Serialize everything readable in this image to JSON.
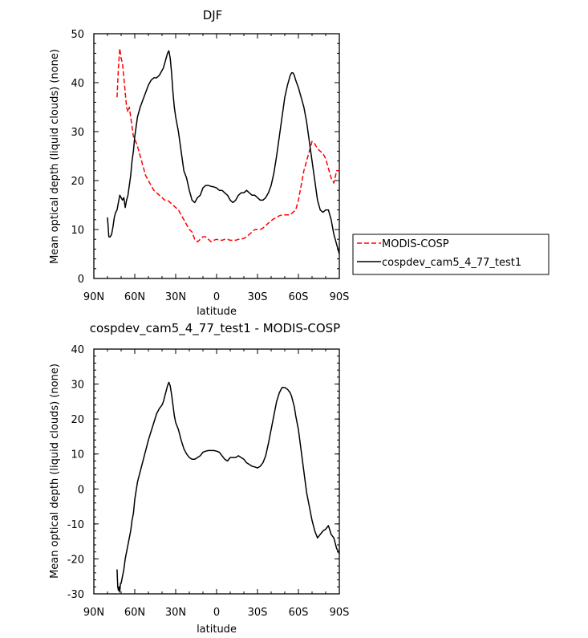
{
  "chart_data": [
    {
      "type": "line",
      "title": "DJF",
      "xlabel": "latitude",
      "ylabel": "Mean optical depth (liquid clouds) (none)",
      "xlim": [
        90,
        -90
      ],
      "ylim": [
        0,
        50
      ],
      "x_ticks": [
        {
          "value": 90,
          "label": "90N"
        },
        {
          "value": 60,
          "label": "60N"
        },
        {
          "value": 30,
          "label": "30N"
        },
        {
          "value": 0,
          "label": "0"
        },
        {
          "value": -30,
          "label": "30S"
        },
        {
          "value": -60,
          "label": "60S"
        },
        {
          "value": -90,
          "label": "90S"
        }
      ],
      "y_ticks": [
        0,
        10,
        20,
        30,
        40,
        50
      ],
      "legend_position": "right",
      "series": [
        {
          "name": "MODIS-COSP",
          "color": "#ff0000",
          "dash": "dashed",
          "x": [
            73,
            72,
            71,
            70,
            69,
            68,
            67,
            66,
            65,
            64,
            63,
            62,
            61,
            60,
            58,
            56,
            54,
            52,
            50,
            48,
            46,
            44,
            42,
            40,
            38,
            36,
            34,
            32,
            30,
            28,
            26,
            24,
            22,
            20,
            18,
            16,
            14,
            12,
            10,
            8,
            6,
            4,
            2,
            0,
            -2,
            -4,
            -6,
            -8,
            -10,
            -12,
            -14,
            -16,
            -18,
            -20,
            -22,
            -24,
            -26,
            -28,
            -30,
            -32,
            -34,
            -36,
            -38,
            -40,
            -42,
            -44,
            -46,
            -48,
            -50,
            -52,
            -54,
            -56,
            -58,
            -60,
            -62,
            -64,
            -66,
            -68,
            -70,
            -72,
            -74,
            -76,
            -78,
            -80,
            -82,
            -84,
            -86,
            -88,
            -90
          ],
          "y": [
            37,
            43,
            47,
            45,
            44,
            41,
            38,
            35,
            34,
            35,
            33,
            31,
            29,
            28.5,
            27,
            25,
            23,
            21,
            20,
            19,
            18,
            17.5,
            17,
            16.5,
            16,
            16,
            15.5,
            15,
            14.5,
            14,
            13,
            12,
            11,
            10,
            9.5,
            8,
            7.5,
            8,
            8.5,
            8.5,
            8,
            7.5,
            7.8,
            8,
            7.8,
            7.8,
            8,
            8,
            7.8,
            7.8,
            7.8,
            8,
            8,
            8.2,
            8.5,
            9,
            9.5,
            10,
            10,
            10,
            10.3,
            10.8,
            11.3,
            11.8,
            12.2,
            12.5,
            12.8,
            13,
            13,
            13,
            13,
            13.5,
            14,
            16,
            19,
            22,
            24,
            26,
            28,
            27.5,
            26.5,
            26,
            25.5,
            24.5,
            22.5,
            20.5,
            19.5,
            22,
            22
          ]
        },
        {
          "name": "cospdev_cam5_4_77_test1",
          "color": "#000000",
          "dash": "solid",
          "x": [
            80,
            79,
            78,
            77,
            76,
            75,
            74,
            73,
            72,
            71,
            70,
            69,
            68,
            67,
            66,
            65,
            64,
            63,
            62,
            61,
            60,
            59,
            58,
            56,
            54,
            52,
            50,
            48,
            46,
            44,
            42,
            40,
            39,
            38,
            37,
            36,
            35,
            34,
            33,
            32,
            31,
            30,
            28,
            26,
            24,
            22,
            20,
            18,
            16,
            14,
            12,
            10,
            8,
            6,
            4,
            2,
            0,
            -2,
            -4,
            -6,
            -8,
            -10,
            -12,
            -14,
            -16,
            -18,
            -20,
            -22,
            -24,
            -26,
            -28,
            -30,
            -32,
            -34,
            -36,
            -38,
            -40,
            -42,
            -44,
            -46,
            -48,
            -50,
            -52,
            -54,
            -55,
            -56,
            -57,
            -58,
            -60,
            -62,
            -64,
            -66,
            -68,
            -70,
            -72,
            -74,
            -76,
            -78,
            -80,
            -82,
            -84,
            -86,
            -88,
            -90
          ],
          "y": [
            12.5,
            8.5,
            8.5,
            9,
            10.5,
            12.5,
            13.5,
            14,
            15.5,
            17,
            16.5,
            16,
            16.5,
            14.5,
            16,
            17,
            19,
            21,
            24,
            26,
            29,
            31,
            33,
            35,
            36.5,
            38,
            39.5,
            40.5,
            41,
            41,
            41.5,
            42.5,
            43,
            44,
            45,
            46,
            46.5,
            45,
            42,
            38,
            35,
            33,
            30,
            26,
            22,
            20.5,
            18,
            16,
            15.5,
            16.5,
            17,
            18.5,
            19,
            19,
            18.8,
            18.7,
            18.5,
            18,
            18,
            17.5,
            17,
            16,
            15.5,
            16,
            17,
            17.5,
            17.5,
            18,
            17.5,
            17,
            17,
            16.5,
            16,
            16,
            16.5,
            17.5,
            19,
            21.5,
            25,
            29,
            33,
            37,
            39.5,
            41.5,
            42,
            42,
            41.5,
            40.5,
            39,
            37,
            35,
            32,
            28,
            24,
            20,
            16,
            14,
            13.5,
            14,
            14,
            12,
            9,
            7,
            5
          ]
        }
      ]
    },
    {
      "type": "line",
      "title": "cospdev_cam5_4_77_test1 - MODIS-COSP",
      "xlabel": "latitude",
      "ylabel": "Mean optical depth (liquid clouds) (none)",
      "xlim": [
        90,
        -90
      ],
      "ylim": [
        -30,
        40
      ],
      "x_ticks": [
        {
          "value": 90,
          "label": "90N"
        },
        {
          "value": 60,
          "label": "60N"
        },
        {
          "value": 30,
          "label": "30N"
        },
        {
          "value": 0,
          "label": "0"
        },
        {
          "value": -30,
          "label": "30S"
        },
        {
          "value": -60,
          "label": "60S"
        },
        {
          "value": -90,
          "label": "90S"
        }
      ],
      "y_ticks": [
        -30,
        -20,
        -10,
        0,
        10,
        20,
        30,
        40
      ],
      "series": [
        {
          "color": "#000000",
          "dash": "solid",
          "x": [
            73,
            72.5,
            72,
            71.5,
            71,
            70.5,
            70,
            69,
            68,
            67,
            66,
            65,
            64,
            63,
            62,
            61,
            60,
            58,
            56,
            54,
            52,
            50,
            48,
            46,
            44,
            42,
            40,
            39,
            38,
            37,
            36,
            35,
            34,
            33,
            32,
            31,
            30,
            28,
            26,
            24,
            22,
            20,
            18,
            16,
            14,
            12,
            10,
            8,
            6,
            4,
            2,
            0,
            -2,
            -4,
            -6,
            -8,
            -10,
            -12,
            -14,
            -16,
            -18,
            -20,
            -22,
            -24,
            -26,
            -28,
            -30,
            -32,
            -34,
            -36,
            -38,
            -40,
            -42,
            -44,
            -46,
            -48,
            -50,
            -52,
            -54,
            -55,
            -56,
            -57,
            -58,
            -60,
            -62,
            -64,
            -66,
            -68,
            -70,
            -72,
            -74,
            -76,
            -78,
            -80,
            -82,
            -84,
            -86,
            -88,
            -90
          ],
          "y": [
            -23,
            -28,
            -29,
            -28,
            -29.5,
            -27,
            -27,
            -25,
            -23,
            -20,
            -18,
            -16,
            -14,
            -12,
            -9,
            -7,
            -3,
            2,
            5,
            8,
            11,
            14,
            16.5,
            19,
            21.5,
            23,
            24,
            25,
            26.5,
            28,
            29.5,
            30.5,
            29.5,
            27,
            24,
            21,
            19,
            17,
            14,
            11.5,
            10,
            9,
            8.5,
            8.5,
            9,
            9.5,
            10.5,
            10.8,
            11,
            11,
            11,
            10.8,
            10.5,
            9.5,
            8.5,
            8,
            9,
            9,
            9,
            9.5,
            9,
            8.5,
            7.5,
            7,
            6.5,
            6.3,
            6,
            6.5,
            7.5,
            9.5,
            13,
            17,
            21,
            25,
            27.5,
            29,
            29,
            28.5,
            27.5,
            26.5,
            25,
            23.5,
            21,
            17,
            11,
            5,
            -1,
            -5,
            -9,
            -12,
            -14,
            -13,
            -12,
            -11.5,
            -10.5,
            -13,
            -14,
            -17,
            -18.5
          ]
        }
      ]
    }
  ]
}
